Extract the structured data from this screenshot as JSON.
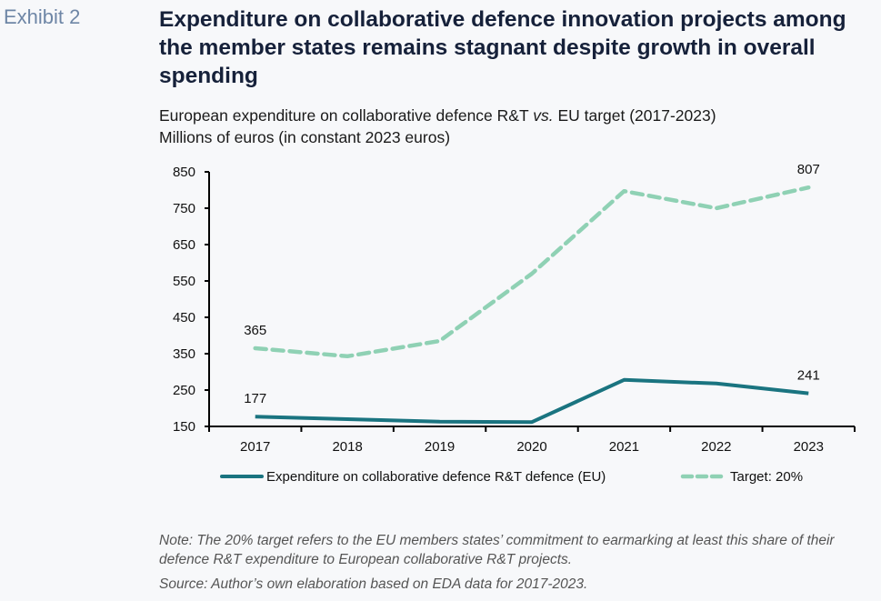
{
  "exhibit_label": "Exhibit 2",
  "title": "Expenditure on collaborative defence innovation projects among the member states remains stagnant despite growth in overall spending",
  "subtitle_line1_pre": "European expenditure on collaborative defence R&T ",
  "subtitle_line1_italic": "vs.",
  "subtitle_line1_post": " EU target (2017-2023)",
  "subtitle_line2": "Millions of euros (in constant 2023 euros)",
  "note": "Note: The 20% target refers to the EU members states’ commitment to earmarking at least this share of their defence R&T expenditure to European collaborative R&T projects.",
  "source": "Source: Author’s own elaboration based on EDA data for 2017-2023.",
  "chart_data": {
    "type": "line",
    "title": "European expenditure on collaborative defence R&T vs. EU target (2017-2023)",
    "ylabel": "Millions of euros (in constant 2023 euros)",
    "xlabel": "",
    "categories": [
      "2017",
      "2018",
      "2019",
      "2020",
      "2021",
      "2022",
      "2023"
    ],
    "ylim": [
      150,
      850
    ],
    "yticks": [
      150,
      250,
      350,
      450,
      550,
      650,
      750,
      850
    ],
    "grid": false,
    "legend_position": "bottom",
    "series": [
      {
        "name": "Expenditure on collaborative defence R&T defence (EU)",
        "style": "solid",
        "color": "#1a7480",
        "values": [
          177,
          170,
          163,
          162,
          278,
          268,
          241
        ],
        "labeled_points": {
          "2017": "177",
          "2023": "241"
        }
      },
      {
        "name": "Target: 20%",
        "style": "dashed",
        "color": "#8fd1b4",
        "values": [
          365,
          343,
          385,
          570,
          797,
          750,
          807
        ],
        "labeled_points": {
          "2017": "365",
          "2023": "807"
        }
      }
    ]
  }
}
